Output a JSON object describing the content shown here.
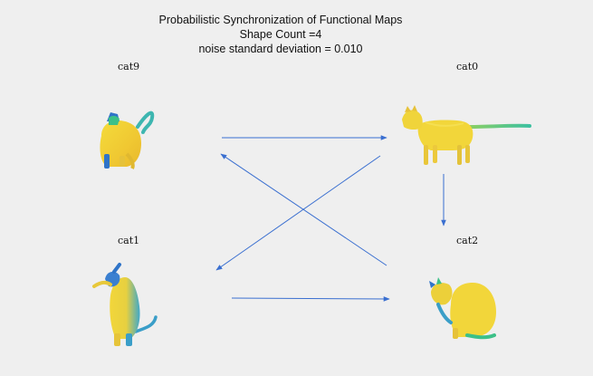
{
  "title": {
    "line1": "Probabilistic Synchronization of Functional Maps",
    "line2": "Shape Count =4",
    "line3": "noise standard deviation = 0.010"
  },
  "nodes": [
    {
      "id": "cat9",
      "label": "cat9"
    },
    {
      "id": "cat0",
      "label": "cat0"
    },
    {
      "id": "cat1",
      "label": "cat1"
    },
    {
      "id": "cat2",
      "label": "cat2"
    }
  ],
  "edges": [
    {
      "from": "cat9",
      "to": "cat0"
    },
    {
      "from": "cat0",
      "to": "cat1"
    },
    {
      "from": "cat2",
      "to": "cat9"
    },
    {
      "from": "cat0",
      "to": "cat2"
    },
    {
      "from": "cat1",
      "to": "cat2"
    }
  ],
  "colors": {
    "arrow": "#3a6fd0",
    "body_yellow": "#f2d63a",
    "body_green": "#3cc088",
    "body_blue": "#2f74c8"
  }
}
